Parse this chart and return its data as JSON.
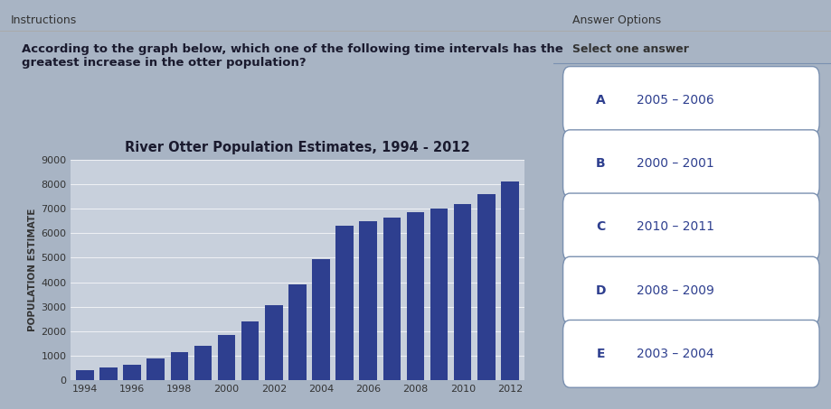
{
  "title": "River Otter Population Estimates, 1994 - 2012",
  "ylabel": "POPULATION ESTIMATE",
  "years": [
    1994,
    1995,
    1996,
    1997,
    1998,
    1999,
    2000,
    2001,
    2002,
    2003,
    2004,
    2005,
    2006,
    2007,
    2008,
    2009,
    2010,
    2011,
    2012
  ],
  "values": [
    400,
    520,
    650,
    880,
    1150,
    1400,
    1850,
    2400,
    3050,
    3900,
    4950,
    6300,
    6500,
    6650,
    6850,
    7000,
    7200,
    7600,
    8100
  ],
  "bar_color": "#2e3f8f",
  "ylim": [
    0,
    9000
  ],
  "yticks": [
    0,
    1000,
    2000,
    3000,
    4000,
    5000,
    6000,
    7000,
    8000,
    9000
  ],
  "xticks": [
    1994,
    1996,
    1998,
    2000,
    2002,
    2004,
    2006,
    2008,
    2010,
    2012
  ],
  "instructions_title": "Instructions",
  "instructions_text": "According to the graph below, which one of the following time intervals has the\ngreatest increase in the otter population?",
  "answer_title": "Answer Options",
  "answer_subtitle": "Select one answer",
  "answer_options": [
    {
      "letter": "A",
      "text": "2005 – 2006"
    },
    {
      "letter": "B",
      "text": "2000 – 2001"
    },
    {
      "letter": "C",
      "text": "2010 – 2011"
    },
    {
      "letter": "D",
      "text": "2008 – 2009"
    },
    {
      "letter": "E",
      "text": "2003 – 2004"
    }
  ],
  "left_panel_bg": "#efefef",
  "right_panel_bg": "#e4e4e4",
  "chart_bg": "#c8d0dc",
  "outer_bg": "#a8b4c4",
  "divider_color": "#aaaaaa",
  "pill_border_color": "#7a90b0",
  "text_color": "#2e3f8f"
}
